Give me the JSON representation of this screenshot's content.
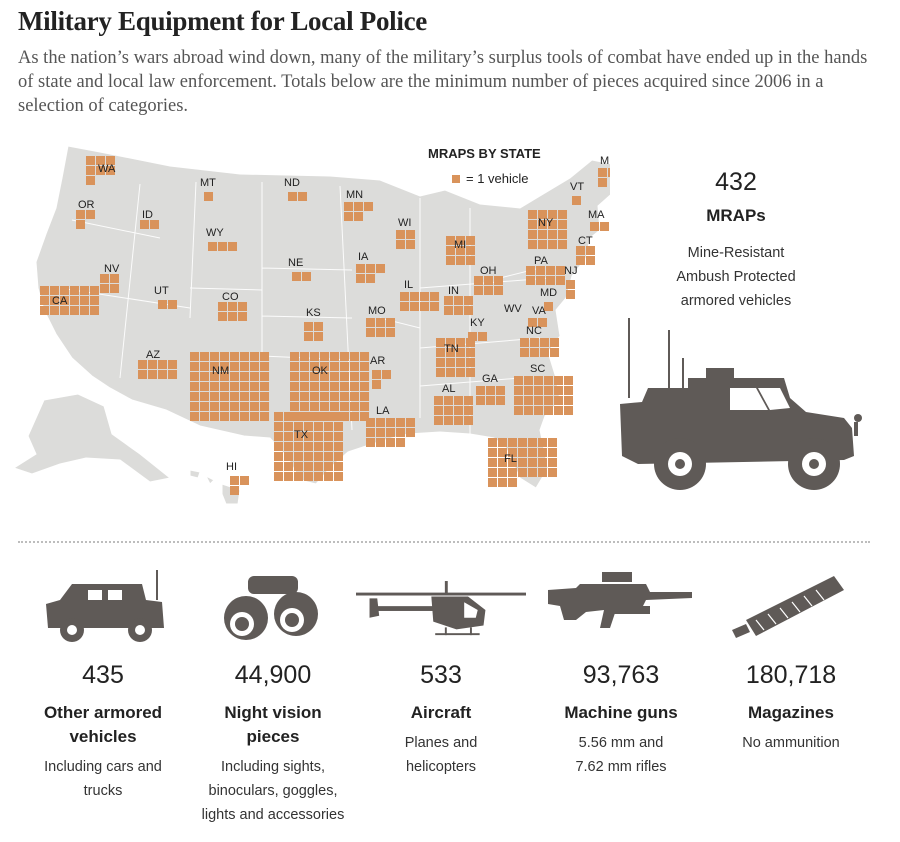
{
  "title": "Military Equipment for Local Police",
  "subtitle": "As the nation’s wars abroad wind down, many of the military’s surplus tools of combat have ended up in the hands of state and local law enforcement. Totals below are the minimum number of pieces acquired since 2006 in a selection of categories.",
  "map": {
    "legend_title": "MRAPS BY STATE",
    "legend_unit": "= 1 vehicle",
    "fill_color": "#d9935b",
    "land_color": "#dcdcda",
    "states": [
      {
        "abbr": "WA",
        "count": 7
      },
      {
        "abbr": "OR",
        "count": 3
      },
      {
        "abbr": "ID",
        "count": 2
      },
      {
        "abbr": "MT",
        "count": 1
      },
      {
        "abbr": "ND",
        "count": 2
      },
      {
        "abbr": "MN",
        "count": 5
      },
      {
        "abbr": "WY",
        "count": 3
      },
      {
        "abbr": "NE",
        "count": 2
      },
      {
        "abbr": "IA",
        "count": 5
      },
      {
        "abbr": "WI",
        "count": 4
      },
      {
        "abbr": "MI",
        "count": 9
      },
      {
        "abbr": "NY",
        "count": 16
      },
      {
        "abbr": "VT",
        "count": 1
      },
      {
        "abbr": "ME",
        "count": 3
      },
      {
        "abbr": "MA",
        "count": 2
      },
      {
        "abbr": "CT",
        "count": 4
      },
      {
        "abbr": "NJ",
        "count": 2
      },
      {
        "abbr": "PA",
        "count": 8
      },
      {
        "abbr": "OH",
        "count": 6
      },
      {
        "abbr": "IN",
        "count": 6
      },
      {
        "abbr": "IL",
        "count": 8
      },
      {
        "abbr": "MD",
        "count": 1
      },
      {
        "abbr": "NV",
        "count": 4
      },
      {
        "abbr": "UT",
        "count": 2
      },
      {
        "abbr": "CO",
        "count": 6
      },
      {
        "abbr": "KS",
        "count": 4
      },
      {
        "abbr": "MO",
        "count": 6
      },
      {
        "abbr": "KY",
        "count": 2
      },
      {
        "abbr": "WV",
        "count": 0
      },
      {
        "abbr": "VA",
        "count": 2
      },
      {
        "abbr": "CA",
        "count": 18
      },
      {
        "abbr": "AZ",
        "count": 8
      },
      {
        "abbr": "NM",
        "count": 56
      },
      {
        "abbr": "OK",
        "count": 56
      },
      {
        "abbr": "AR",
        "count": 3
      },
      {
        "abbr": "TN",
        "count": 16
      },
      {
        "abbr": "NC",
        "count": 8
      },
      {
        "abbr": "SC",
        "count": 24
      },
      {
        "abbr": "GA",
        "count": 6
      },
      {
        "abbr": "AL",
        "count": 12
      },
      {
        "abbr": "TX",
        "count": 49
      },
      {
        "abbr": "LA",
        "count": 14
      },
      {
        "abbr": "FL",
        "count": 31
      },
      {
        "abbr": "HI",
        "count": 3
      }
    ]
  },
  "mraps": {
    "total": "432",
    "label": "MRAPs",
    "description": [
      "Mine-Resistant",
      "Ambush Protected",
      "armored vehicles"
    ]
  },
  "categories": [
    {
      "icon": "humvee-icon",
      "number": "435",
      "label": [
        "Other armored",
        "vehicles"
      ],
      "desc": [
        "Including cars and",
        "trucks"
      ]
    },
    {
      "icon": "night-vision-goggles-icon",
      "number": "44,900",
      "label": [
        "Night vision",
        "pieces"
      ],
      "desc": [
        "Including sights,",
        "binoculars, goggles,",
        "lights and accessories"
      ]
    },
    {
      "icon": "helicopter-icon",
      "number": "533",
      "label": [
        "Aircraft"
      ],
      "desc": [
        "Planes and",
        "helicopters"
      ]
    },
    {
      "icon": "machine-gun-icon",
      "number": "93,763",
      "label": [
        "Machine guns"
      ],
      "desc": [
        "5.56 mm and",
        "7.62 mm rifles"
      ]
    },
    {
      "icon": "magazine-icon",
      "number": "180,718",
      "label": [
        "Magazines"
      ],
      "desc": [
        "No ammunition"
      ]
    }
  ]
}
